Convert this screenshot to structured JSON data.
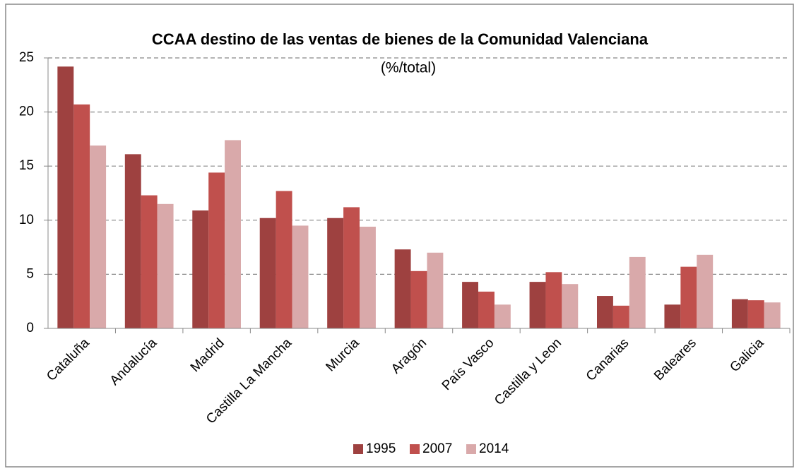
{
  "chart_data": {
    "type": "bar",
    "title": "CCAA destino de las ventas de bienes de la Comunidad Valenciana",
    "subtitle": "(%/total)",
    "categories": [
      "Cataluña",
      "Andalucía",
      "Madrid",
      "Castilla La Mancha",
      "Murcia",
      "Aragón",
      "País Vasco",
      "Castilla y Leon",
      "Canarias",
      "Baleares",
      "Galicia"
    ],
    "series": [
      {
        "name": "1995",
        "color": "#9e4140",
        "values": [
          24.2,
          16.1,
          10.9,
          10.2,
          10.2,
          7.3,
          4.3,
          4.3,
          3.0,
          2.2,
          2.7
        ]
      },
      {
        "name": "2007",
        "color": "#c0504d",
        "values": [
          20.7,
          12.3,
          14.4,
          12.7,
          11.2,
          5.3,
          3.4,
          5.2,
          2.1,
          5.7,
          2.6
        ]
      },
      {
        "name": "2014",
        "color": "#d9a9aa",
        "values": [
          16.9,
          11.5,
          17.4,
          9.5,
          9.4,
          7.0,
          2.2,
          4.1,
          6.6,
          6.8,
          2.4
        ]
      }
    ],
    "ylim": [
      0,
      25
    ],
    "yticks": [
      0,
      5,
      10,
      15,
      20,
      25
    ],
    "grid": true,
    "legend": "bottom"
  }
}
